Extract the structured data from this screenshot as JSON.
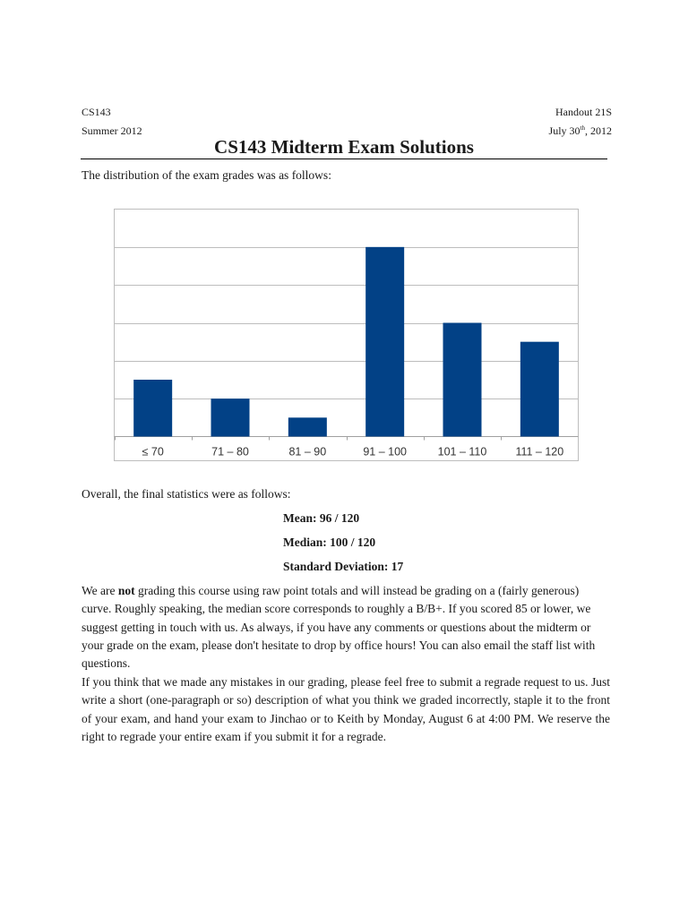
{
  "header": {
    "course": "CS143",
    "term": "Summer 2012",
    "handout": "Handout 21S",
    "date_prefix": "July 30",
    "date_suffix": "th",
    "date_year": ", 2012"
  },
  "title": "CS143 Midterm Exam Solutions",
  "intro": "The distribution of the exam grades was as follows:",
  "chart_data": {
    "type": "bar",
    "categories": [
      "≤ 70",
      "71 – 80",
      "81 – 90",
      "91 – 100",
      "101 – 110",
      "111 – 120"
    ],
    "values": [
      3,
      2,
      1,
      10,
      6,
      5
    ],
    "ylim": [
      0,
      12
    ],
    "gridline_values": [
      2,
      4,
      6,
      8,
      10,
      12
    ],
    "grid": true,
    "bar_color": "#024186",
    "gridline_color": "#bdbdbd"
  },
  "stats": {
    "intro": "Overall, the final statistics were as follows:",
    "mean": "Mean: 96 / 120",
    "median": "Median: 100 / 120",
    "stddev": "Standard Deviation: 17"
  },
  "paragraph1": {
    "before_bold": "We are ",
    "bold": "not",
    "after_bold": " grading this course using raw point totals and will instead be grading on a (fairly generous) curve.  Roughly speaking, the median score corresponds to roughly a B/B+.  If you scored 85 or lower, we suggest getting in touch with us.  As always, if you have any comments or questions about the midterm or your grade on the exam, please don't hesitate to drop by office hours!  You can also email the staff list with questions."
  },
  "paragraph2": "If you think that we made any mistakes in our grading, please feel free to submit a regrade request to us.  Just write a short (one-paragraph or so) description of what you think we graded incorrectly, staple it to the front of your exam, and hand your exam to Jinchao or to Keith by Monday, August 6 at 4:00 PM.  We reserve the right to regrade your entire exam if you submit it for a regrade."
}
